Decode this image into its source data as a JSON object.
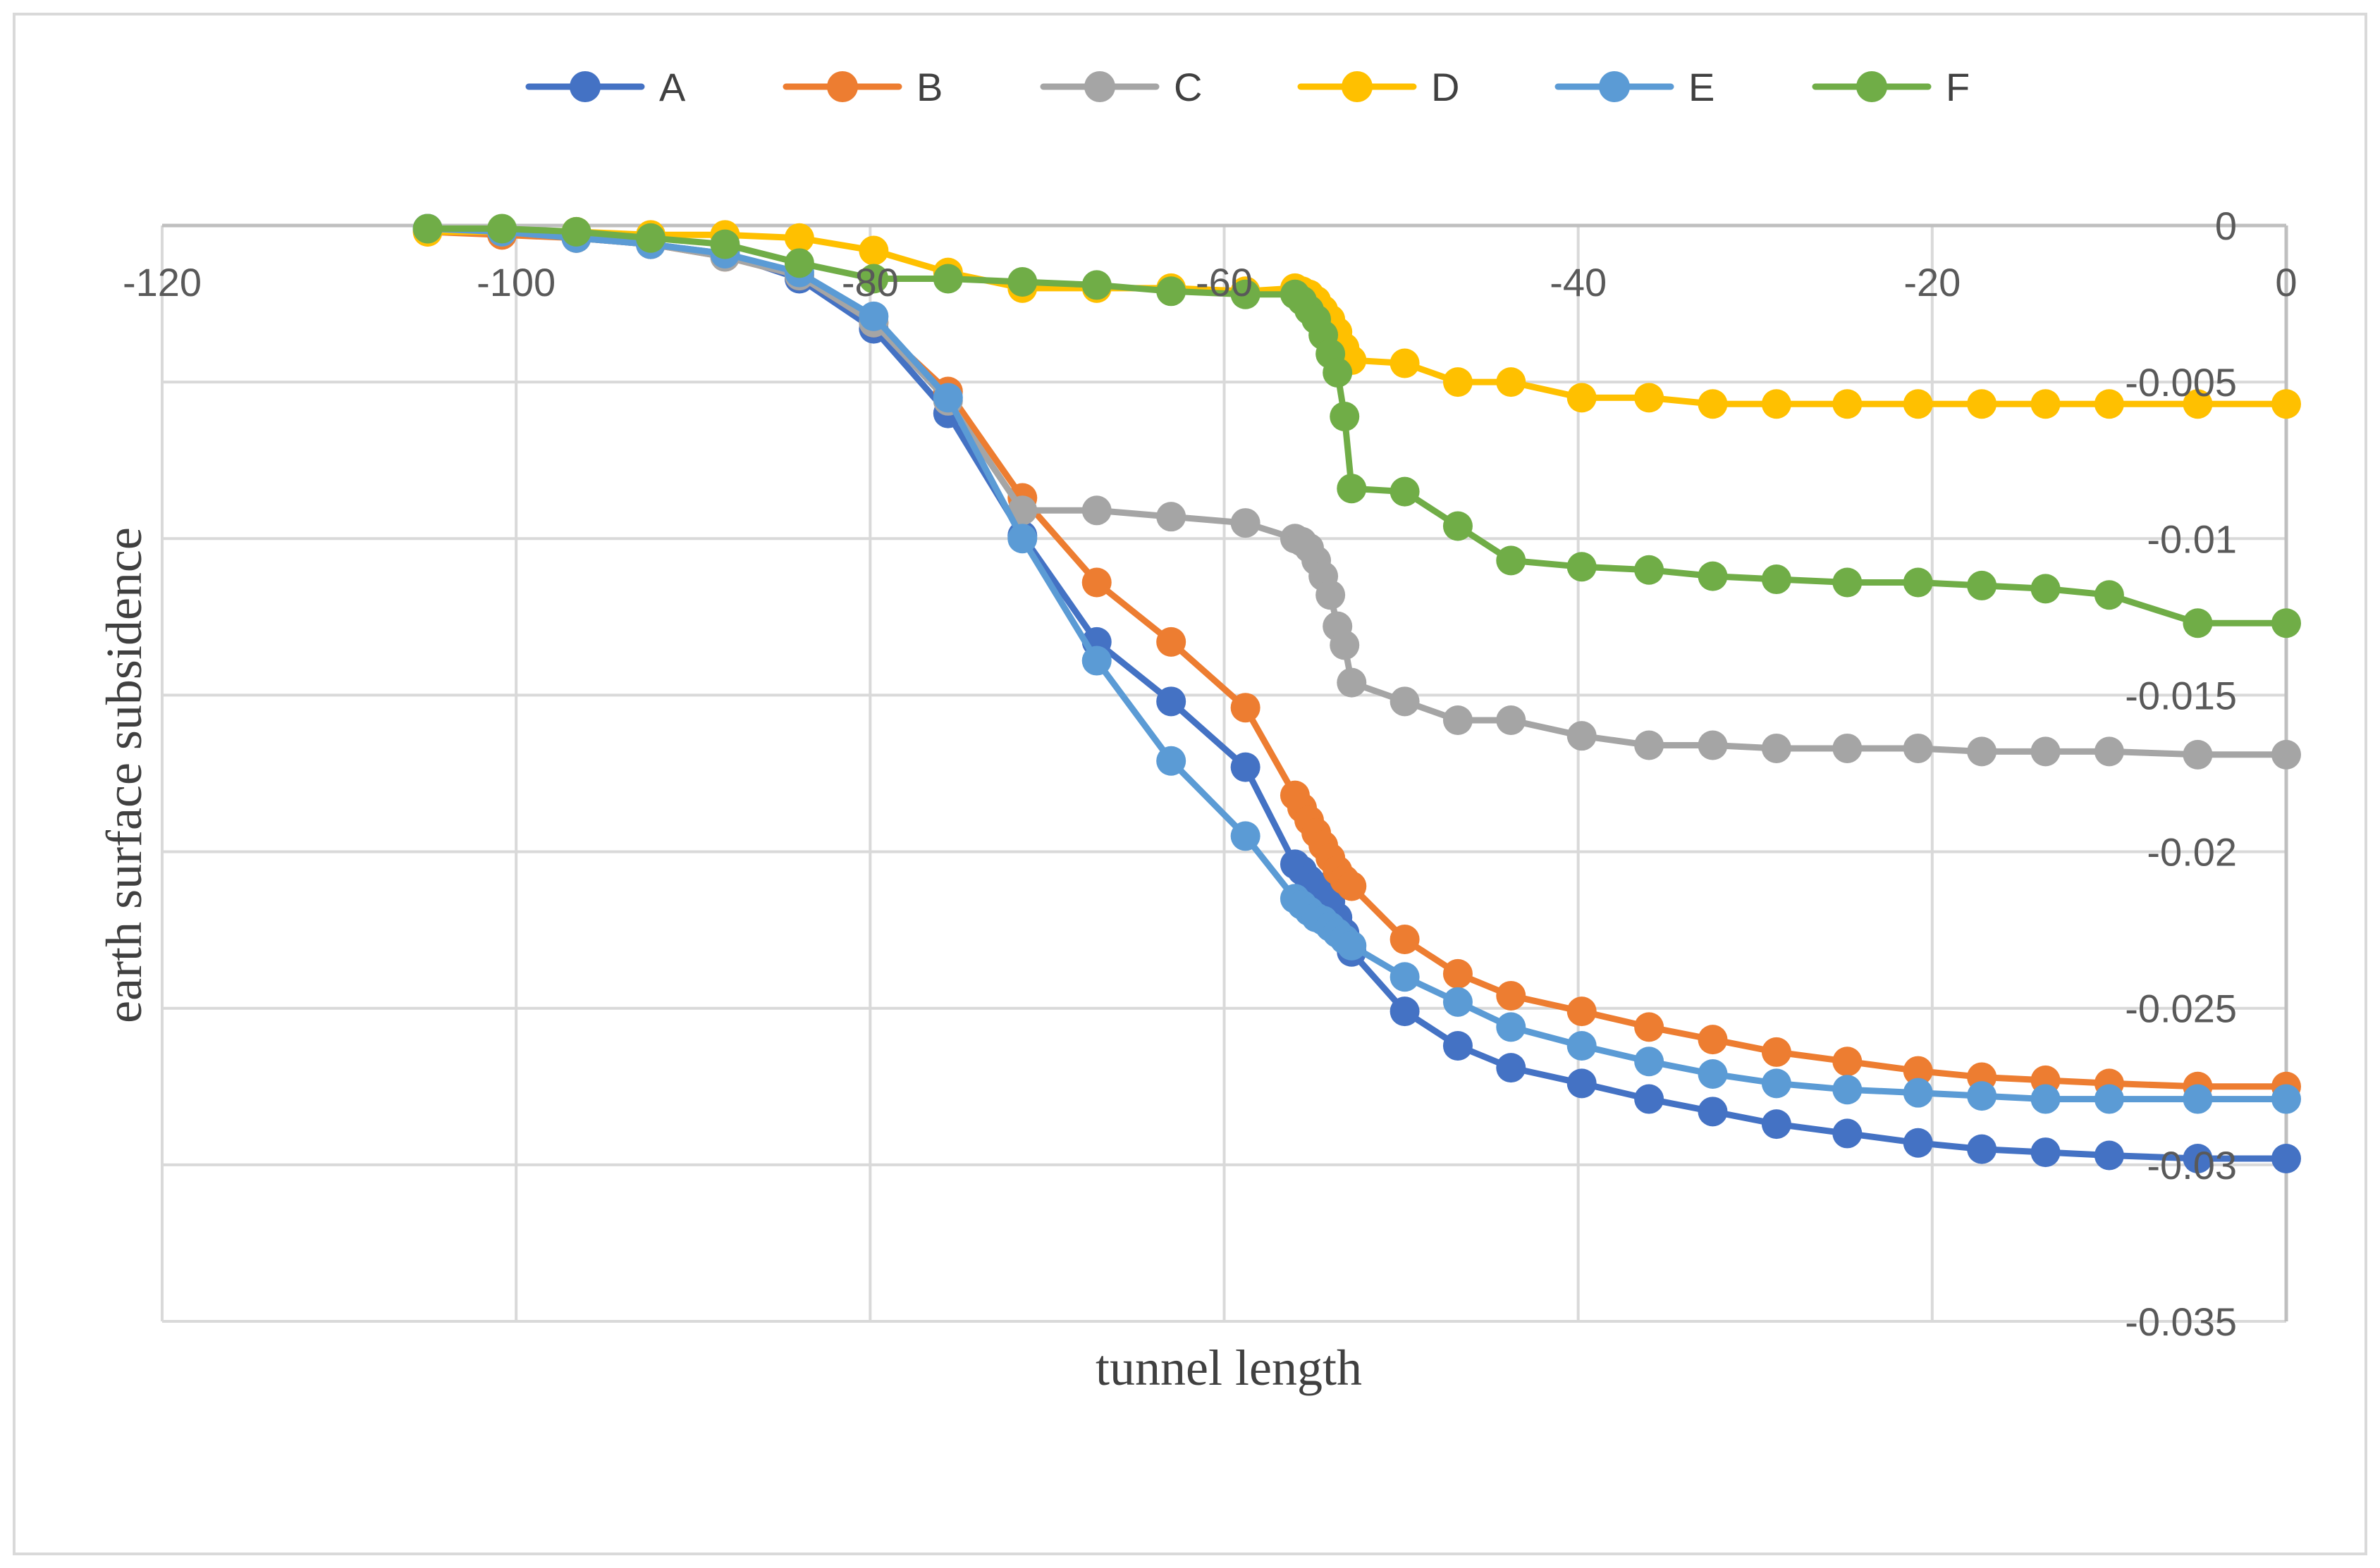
{
  "chart_data": {
    "type": "line",
    "title": "",
    "xlabel": "tunnel length",
    "ylabel": "earth surface subsidence",
    "xlim": [
      -120,
      0
    ],
    "ylim": [
      -0.035,
      0
    ],
    "x_ticks": [
      -120,
      -100,
      -80,
      -60,
      -40,
      -20,
      0
    ],
    "y_ticks": [
      0,
      -0.005,
      -0.01,
      -0.015,
      -0.02,
      -0.025,
      -0.03,
      -0.035
    ],
    "x_tick_labels": [
      "-120",
      "-100",
      "-80",
      "-60",
      "-40",
      "-20",
      "0"
    ],
    "y_tick_labels": [
      "0",
      "-0.005",
      "-0.01",
      "-0.015",
      "-0.02",
      "-0.025",
      "-0.03",
      "-0.035"
    ],
    "grid": true,
    "legend_position": "top",
    "series": [
      {
        "name": "A",
        "color": "#4472C4",
        "x": [
          -105,
          -100.8,
          -96.6,
          -92.4,
          -88.2,
          -84,
          -79.8,
          -75.6,
          -71.4,
          -67.2,
          -63,
          -58.8,
          -56,
          -55.6,
          -55.2,
          -54.8,
          -54.4,
          -54,
          -53.6,
          -53.2,
          -52.8,
          -49.8,
          -46.8,
          -43.8,
          -39.8,
          -36,
          -32.4,
          -28.8,
          -24.8,
          -20.8,
          -17.2,
          -13.6,
          -10,
          -5,
          0
        ],
        "y": [
          -0.0001,
          -0.0002,
          -0.0004,
          -0.0006,
          -0.0009,
          -0.0017,
          -0.0033,
          -0.006,
          -0.0099,
          -0.0133,
          -0.0152,
          -0.0173,
          -0.0204,
          -0.0206,
          -0.0209,
          -0.0211,
          -0.0214,
          -0.0216,
          -0.0221,
          -0.0226,
          -0.0232,
          -0.0251,
          -0.0262,
          -0.0269,
          -0.0274,
          -0.0279,
          -0.0283,
          -0.0287,
          -0.029,
          -0.0293,
          -0.0295,
          -0.0296,
          -0.0297,
          -0.0298,
          -0.0298
        ]
      },
      {
        "name": "B",
        "color": "#ED7D31",
        "x": [
          -105,
          -100.8,
          -96.6,
          -92.4,
          -88.2,
          -84,
          -79.8,
          -75.6,
          -71.4,
          -67.2,
          -63,
          -58.8,
          -56,
          -55.6,
          -55.2,
          -54.8,
          -54.4,
          -54,
          -53.6,
          -53.2,
          -52.8,
          -49.8,
          -46.8,
          -43.8,
          -39.8,
          -36,
          -32.4,
          -28.8,
          -24.8,
          -20.8,
          -17.2,
          -13.6,
          -10,
          -5,
          0
        ],
        "y": [
          -0.0002,
          -0.0003,
          -0.0004,
          -0.0006,
          -0.001,
          -0.0016,
          -0.0031,
          -0.0053,
          -0.0087,
          -0.0114,
          -0.0133,
          -0.0154,
          -0.0182,
          -0.0186,
          -0.019,
          -0.0194,
          -0.0198,
          -0.0202,
          -0.0206,
          -0.0209,
          -0.0211,
          -0.0228,
          -0.0239,
          -0.0246,
          -0.0251,
          -0.0256,
          -0.026,
          -0.0264,
          -0.0267,
          -0.027,
          -0.0272,
          -0.0273,
          -0.0274,
          -0.0275,
          -0.0275
        ]
      },
      {
        "name": "C",
        "color": "#A5A5A5",
        "x": [
          -105,
          -100.8,
          -96.6,
          -92.4,
          -88.2,
          -84,
          -79.8,
          -75.6,
          -71.4,
          -67.2,
          -63,
          -58.8,
          -56,
          -55.6,
          -55.2,
          -54.8,
          -54.4,
          -54,
          -53.6,
          -53.2,
          -52.8,
          -49.8,
          -46.8,
          -43.8,
          -39.8,
          -36,
          -32.4,
          -28.8,
          -24.8,
          -20.8,
          -17.2,
          -13.6,
          -10,
          -5,
          0
        ],
        "y": [
          -0.0001,
          -0.0002,
          -0.0004,
          -0.0006,
          -0.001,
          -0.0016,
          -0.0031,
          -0.0056,
          -0.0091,
          -0.0091,
          -0.0093,
          -0.0095,
          -0.01,
          -0.0101,
          -0.0103,
          -0.0107,
          -0.0112,
          -0.0118,
          -0.0128,
          -0.0134,
          -0.0146,
          -0.0152,
          -0.0158,
          -0.0158,
          -0.0163,
          -0.0166,
          -0.0166,
          -0.0167,
          -0.0167,
          -0.0167,
          -0.0168,
          -0.0168,
          -0.0168,
          -0.0169,
          -0.0169
        ]
      },
      {
        "name": "D",
        "color": "#FFC000",
        "x": [
          -105,
          -100.8,
          -96.6,
          -92.4,
          -88.2,
          -84,
          -79.8,
          -75.6,
          -71.4,
          -67.2,
          -63,
          -58.8,
          -56,
          -55.6,
          -55.2,
          -54.8,
          -54.4,
          -54,
          -53.6,
          -53.2,
          -52.8,
          -49.8,
          -46.8,
          -43.8,
          -39.8,
          -36,
          -32.4,
          -28.8,
          -24.8,
          -20.8,
          -17.2,
          -13.6,
          -10,
          -5,
          0
        ],
        "y": [
          -0.0002,
          -0.0002,
          -0.0002,
          -0.0003,
          -0.0003,
          -0.0004,
          -0.0008,
          -0.0015,
          -0.002,
          -0.002,
          -0.002,
          -0.0021,
          -0.002,
          -0.0021,
          -0.0022,
          -0.0024,
          -0.0027,
          -0.003,
          -0.0034,
          -0.0039,
          -0.0043,
          -0.0044,
          -0.005,
          -0.005,
          -0.0055,
          -0.0055,
          -0.0057,
          -0.0057,
          -0.0057,
          -0.0057,
          -0.0057,
          -0.0057,
          -0.0057,
          -0.0057,
          -0.0057
        ]
      },
      {
        "name": "E",
        "color": "#5B9BD5",
        "x": [
          -105,
          -100.8,
          -96.6,
          -92.4,
          -88.2,
          -84,
          -79.8,
          -75.6,
          -71.4,
          -67.2,
          -63,
          -58.8,
          -56,
          -55.6,
          -55.2,
          -54.8,
          -54.4,
          -54,
          -53.6,
          -53.2,
          -52.8,
          -49.8,
          -46.8,
          -43.8,
          -39.8,
          -36,
          -32.4,
          -28.8,
          -24.8,
          -20.8,
          -17.2,
          -13.6,
          -10,
          -5,
          0
        ],
        "y": [
          -0.0001,
          -0.0002,
          -0.0004,
          -0.0006,
          -0.0009,
          -0.0015,
          -0.0029,
          -0.0055,
          -0.01,
          -0.0139,
          -0.0171,
          -0.0195,
          -0.0215,
          -0.0217,
          -0.0219,
          -0.0221,
          -0.0222,
          -0.0224,
          -0.0226,
          -0.0228,
          -0.023,
          -0.024,
          -0.0248,
          -0.0256,
          -0.0262,
          -0.0267,
          -0.0271,
          -0.0274,
          -0.0276,
          -0.0277,
          -0.0278,
          -0.0279,
          -0.0279,
          -0.0279,
          -0.0279
        ]
      },
      {
        "name": "F",
        "color": "#70AD47",
        "x": [
          -105,
          -100.8,
          -96.6,
          -92.4,
          -88.2,
          -84,
          -79.8,
          -75.6,
          -71.4,
          -67.2,
          -63,
          -58.8,
          -56,
          -55.6,
          -55.2,
          -54.8,
          -54.4,
          -54,
          -53.6,
          -53.2,
          -52.8,
          -49.8,
          -46.8,
          -43.8,
          -39.8,
          -36,
          -32.4,
          -28.8,
          -24.8,
          -20.8,
          -17.2,
          -13.6,
          -10,
          -5,
          0
        ],
        "y": [
          -0.0001,
          -0.0001,
          -0.0002,
          -0.0004,
          -0.0006,
          -0.0012,
          -0.0017,
          -0.0017,
          -0.0018,
          -0.0019,
          -0.0021,
          -0.0022,
          -0.0022,
          -0.0024,
          -0.0027,
          -0.003,
          -0.0035,
          -0.0041,
          -0.0047,
          -0.0061,
          -0.0084,
          -0.0085,
          -0.0096,
          -0.0107,
          -0.0109,
          -0.011,
          -0.0112,
          -0.0113,
          -0.0114,
          -0.0114,
          -0.0115,
          -0.0116,
          -0.0118,
          -0.0127,
          -0.0127
        ]
      }
    ]
  }
}
